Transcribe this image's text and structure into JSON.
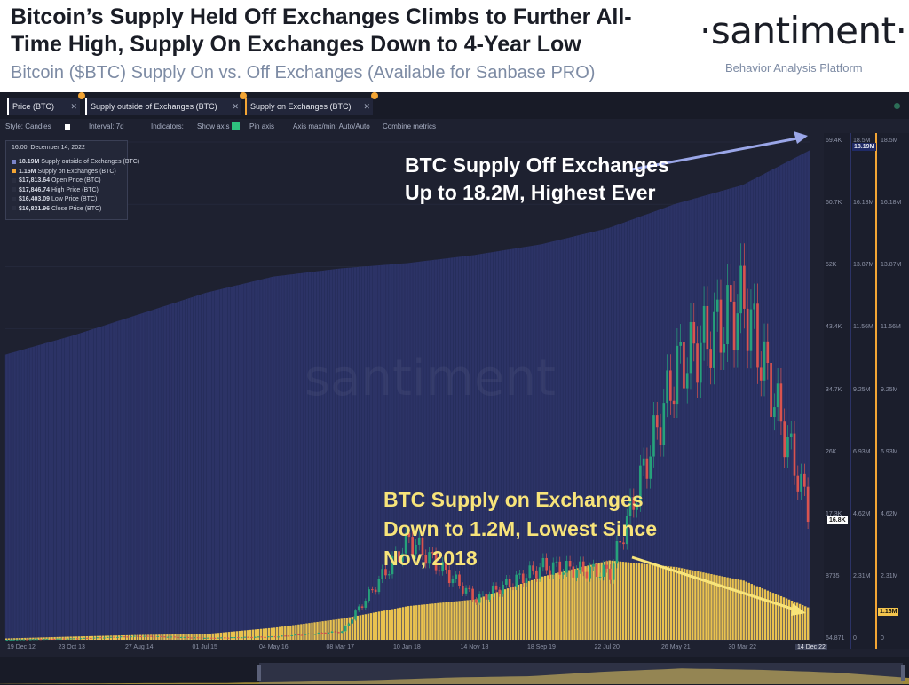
{
  "header": {
    "title": "Bitcoin’s Supply Held Off Exchanges Climbs to Further All-Time High, Supply On Exchanges Down to 4-Year Low",
    "subtitle": "Bitcoin ($BTC) Supply On vs. Off Exchanges (Available for Sanbase PRO)",
    "logo": "·santiment·",
    "logo_tagline": "Behavior Analysis Platform"
  },
  "tabs": [
    {
      "label": "Price (BTC)"
    },
    {
      "label": "Supply outside of Exchanges (BTC)"
    },
    {
      "label": "Supply on Exchanges (BTC)"
    }
  ],
  "toolbar": {
    "style": "Style: Candles",
    "interval": "Interval: 7d",
    "indicators": "Indicators:",
    "show_axis": "Show axis",
    "pin_axis": "Pin axis",
    "axis_minmax": "Axis max/min: Auto/Auto",
    "combine": "Combine metrics"
  },
  "tooltip": {
    "date": "16:00, December 14, 2022",
    "rows": [
      {
        "value": "18.19M",
        "label": "Supply outside of Exchanges (BTC)",
        "color": "#7b84c8"
      },
      {
        "value": "1.16M",
        "label": "Supply on Exchanges (BTC)",
        "color": "#f3a534"
      },
      {
        "value": "$17,813.64",
        "label": "Open Price (BTC)",
        "color": "#2a2e40"
      },
      {
        "value": "$17,846.74",
        "label": "High Price (BTC)",
        "color": "#2a2e40"
      },
      {
        "value": "$16,403.09",
        "label": "Low Price (BTC)",
        "color": "#2a2e40"
      },
      {
        "value": "$16,831.96",
        "label": "Close Price (BTC)",
        "color": "#2a2e40"
      }
    ]
  },
  "annotations": {
    "off_exchanges": "BTC Supply Off Exchanges Up to 18.2M, Highest Ever",
    "on_exchanges": "BTC Supply on Exchanges Down to 1.2M, Lowest Since Nov, 2018"
  },
  "watermark": "santiment",
  "colors": {
    "background": "#1e2130",
    "off_exchanges": "#2c3366",
    "on_exchanges": "#e9c24f",
    "candle_up": "#26a17b",
    "candle_down": "#d9534f",
    "arrow_white": "#9aa6e8",
    "arrow_yellow": "#f8e47a"
  },
  "chart_data": {
    "type": "area",
    "x_ticks": [
      "19 Dec 12",
      "23 Oct 13",
      "27 Aug 14",
      "01 Jul 15",
      "04 May 16",
      "08 Mar 17",
      "10 Jan 18",
      "14 Nov 18",
      "18 Sep 19",
      "22 Jul 20",
      "26 May 21",
      "30 Mar 22",
      "14 Dec 22"
    ],
    "y_axis_price": [
      "69.4K",
      "60.7K",
      "52K",
      "43.4K",
      "34.7K",
      "26K",
      "17.3K",
      "8735",
      "64.871"
    ],
    "y_axis_supply_outside": [
      "18.5M",
      "16.18M",
      "13.87M",
      "11.56M",
      "9.25M",
      "6.93M",
      "4.62M",
      "2.31M",
      "0"
    ],
    "y_axis_supply_on": [
      "18.5M",
      "16.18M",
      "13.87M",
      "11.56M",
      "9.25M",
      "6.93M",
      "4.62M",
      "2.31M",
      "0"
    ],
    "current_labels": {
      "price": "16.8K",
      "supply_outside": "18.19M",
      "supply_on": "1.16M"
    },
    "series": [
      {
        "name": "Supply outside of Exchanges (BTC)",
        "unit": "M BTC",
        "x": [
          "19 Dec 12",
          "23 Oct 13",
          "27 Aug 14",
          "01 Jul 15",
          "04 May 16",
          "08 Mar 17",
          "10 Jan 18",
          "14 Nov 18",
          "18 Sep 19",
          "22 Jul 20",
          "26 May 21",
          "30 Mar 22",
          "14 Dec 22"
        ],
        "values": [
          10.6,
          11.3,
          12.1,
          12.9,
          13.5,
          13.8,
          14.0,
          14.3,
          14.7,
          15.3,
          16.2,
          16.9,
          18.19
        ]
      },
      {
        "name": "Supply on Exchanges (BTC)",
        "unit": "M BTC",
        "x": [
          "19 Dec 12",
          "23 Oct 13",
          "27 Aug 14",
          "01 Jul 15",
          "04 May 16",
          "08 Mar 17",
          "10 Jan 18",
          "14 Nov 18",
          "18 Sep 19",
          "22 Jul 20",
          "26 May 21",
          "30 Mar 22",
          "14 Dec 22"
        ],
        "values": [
          0.05,
          0.12,
          0.18,
          0.22,
          0.45,
          0.78,
          1.25,
          1.5,
          2.35,
          2.95,
          2.7,
          2.2,
          1.16
        ]
      },
      {
        "name": "Price (BTC)",
        "unit": "USD",
        "x": [
          "19 Dec 12",
          "23 Oct 13",
          "27 Aug 14",
          "01 Jul 15",
          "04 May 16",
          "08 Mar 17",
          "10 Jan 18",
          "14 Nov 18",
          "18 Sep 19",
          "22 Jul 20",
          "26 May 21",
          "30 Mar 22",
          "14 Dec 22"
        ],
        "values": [
          13,
          190,
          520,
          255,
          450,
          1150,
          14000,
          5600,
          10200,
          9400,
          38000,
          47000,
          16830
        ]
      }
    ]
  }
}
